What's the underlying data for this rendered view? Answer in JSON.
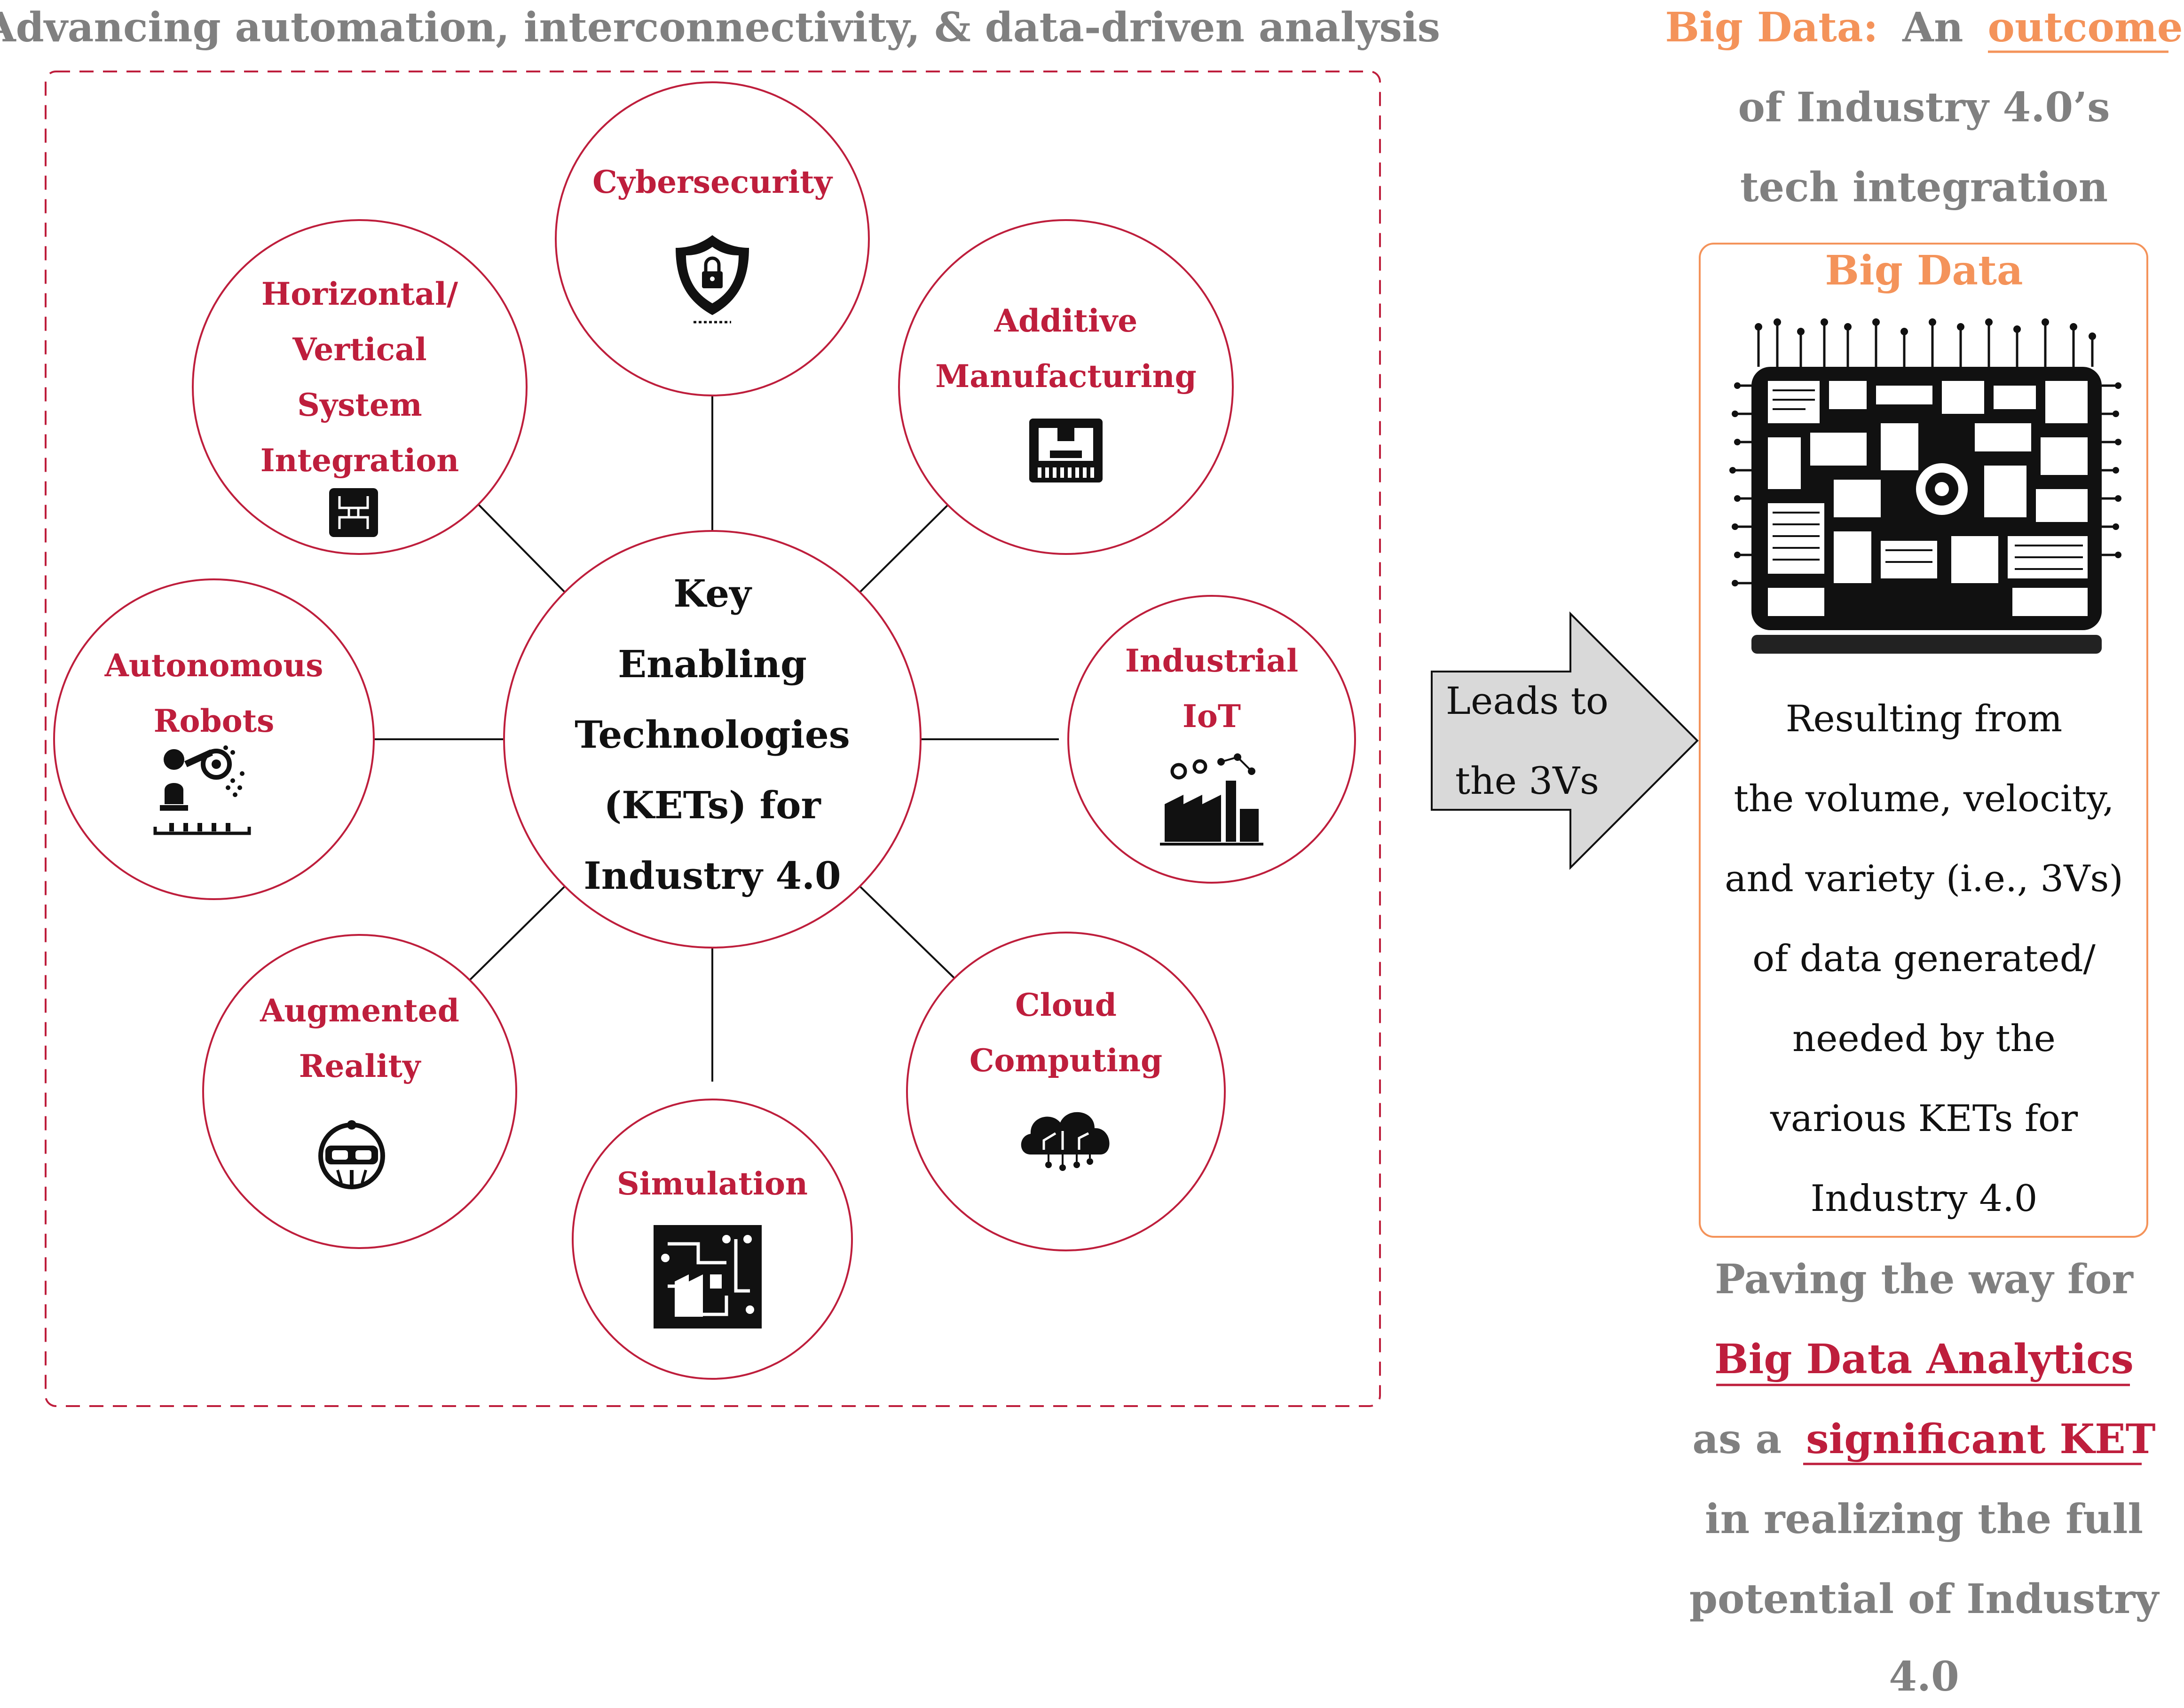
{
  "header": {
    "left_title": "Advancing automation, interconnectivity, & data-driven analysis",
    "right_title_part1": "Big Data:",
    "right_title_part2": "An",
    "right_title_part3": "outcome",
    "right_title_line2": "of Industry 4.0’s",
    "right_title_line3": "tech integration"
  },
  "hub": {
    "lines": [
      "Key",
      "Enabling",
      "Technologies",
      "(KETs) for",
      "Industry 4.0"
    ]
  },
  "nodes": {
    "cybersecurity": {
      "lines": [
        "Cybersecurity"
      ],
      "icon": "shield-lock-icon"
    },
    "additive": {
      "lines": [
        "Additive",
        "Manufacturing"
      ],
      "icon": "3d-printer-icon"
    },
    "iot": {
      "lines": [
        "Industrial",
        "IoT"
      ],
      "icon": "smart-factory-icon"
    },
    "cloud": {
      "lines": [
        "Cloud",
        "Computing"
      ],
      "icon": "cloud-circuit-icon"
    },
    "simulation": {
      "lines": [
        "Simulation"
      ],
      "icon": "circuit-board-icon"
    },
    "ar": {
      "lines": [
        "Augmented",
        "Reality"
      ],
      "icon": "vr-headset-icon"
    },
    "robots": {
      "lines": [
        "Autonomous",
        "Robots"
      ],
      "icon": "robot-arm-icon"
    },
    "integration": {
      "lines": [
        "Horizontal/",
        "Vertical",
        "System",
        "Integration"
      ],
      "icon": "chip-icon"
    }
  },
  "arrow": {
    "lines": [
      "Leads to",
      "the 3Vs"
    ]
  },
  "bigdata_box": {
    "title": "Big Data",
    "image": "big-data-machine-icon",
    "lines": [
      "Resulting from",
      "the volume, velocity,",
      "and variety (i.e., 3Vs)",
      "of data generated/",
      "needed by the",
      "various KETs for",
      "Industry 4.0"
    ]
  },
  "footer": {
    "line1": "Paving the way for",
    "line2": "Big Data Analytics",
    "line3_part1": "as a",
    "line3_part2": "significant KET",
    "line4": "in realizing the full",
    "line5": "potential of Industry",
    "line6": "4.0"
  },
  "colors": {
    "accent_red": "#be1e3c",
    "accent_orange": "#f4935a",
    "gray_text": "#808080",
    "arrow_fill": "#d9d9d9"
  }
}
